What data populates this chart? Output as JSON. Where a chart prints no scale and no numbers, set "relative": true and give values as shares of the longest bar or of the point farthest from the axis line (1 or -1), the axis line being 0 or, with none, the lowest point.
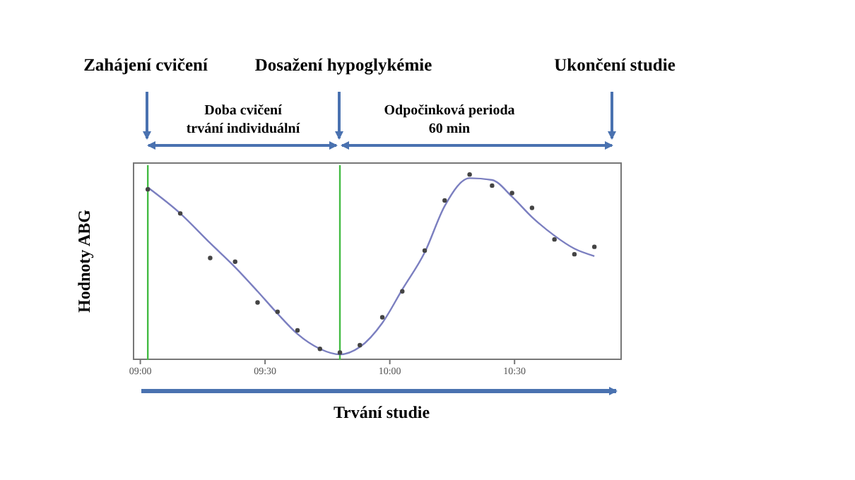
{
  "chart_data": {
    "type": "scatter",
    "relative": true,
    "xlabel": "Trvání studie",
    "ylabel": "Hodnoty ABG",
    "x": [
      9.03,
      9.16,
      9.28,
      9.38,
      9.47,
      9.55,
      9.63,
      9.72,
      9.8,
      9.88,
      9.97,
      10.05,
      10.14,
      10.22,
      10.32,
      10.41,
      10.49,
      10.57,
      10.66,
      10.74,
      10.82
    ],
    "xlim": [
      8.97,
      10.93
    ],
    "xticks": [
      {
        "value": 9,
        "label": "09:00"
      },
      {
        "value": 9.5,
        "label": "09:30"
      },
      {
        "value": 10,
        "label": "10:00"
      },
      {
        "value": 10.5,
        "label": "10:30"
      }
    ],
    "series": [
      {
        "color": "#444444",
        "marker": "circle",
        "values": [
          0.92,
          0.79,
          0.55,
          0.53,
          0.31,
          0.26,
          0.16,
          0.06,
          0.04,
          0.08,
          0.23,
          0.37,
          0.59,
          0.86,
          1,
          0.94,
          0.9,
          0.82,
          0.65,
          0.57,
          0.61
        ]
      },
      {
        "type": "line",
        "color": "#7b7fc0",
        "marker": "none",
        "x": [
          9.03,
          9.16,
          9.28,
          9.38,
          9.47,
          9.55,
          9.63,
          9.72,
          9.8,
          9.88,
          9.97,
          10.05,
          10.14,
          10.22,
          10.32,
          10.41,
          10.49,
          10.57,
          10.66,
          10.74,
          10.82
        ],
        "values": [
          0.93,
          0.79,
          0.63,
          0.5,
          0.37,
          0.25,
          0.14,
          0.06,
          0.03,
          0.07,
          0.2,
          0.38,
          0.58,
          0.83,
          0.98,
          0.97,
          0.88,
          0.77,
          0.67,
          0.6,
          0.56
        ]
      }
    ],
    "ref_lines": [
      {
        "axis": "x",
        "value": 9.03,
        "color": "#44bb44"
      },
      {
        "axis": "x",
        "value": 9.8,
        "color": "#44bb44"
      }
    ],
    "annotations": [
      "Zahájení cvičení",
      "Dosažení hypoglykémie",
      "Ukončení studie",
      "Doba cvičení\ntrvání individuální",
      "Odpočinková perioda\n60 min"
    ],
    "grid": false,
    "legend": false
  }
}
